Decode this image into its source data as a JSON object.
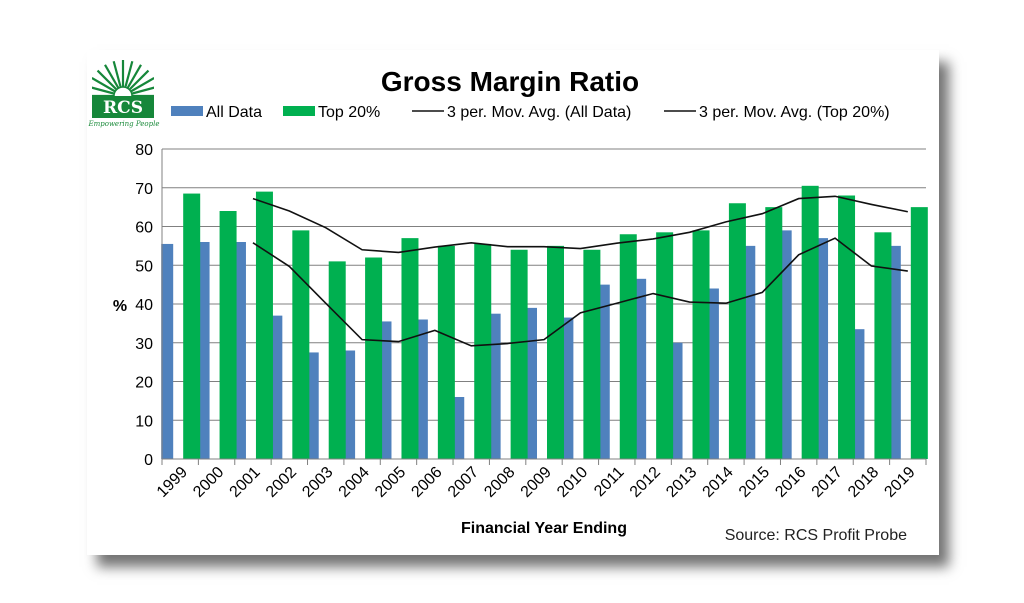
{
  "logo": {
    "text": "RCS",
    "tagline": "Empowering People"
  },
  "chart_data": {
    "type": "bar",
    "title": "Gross Margin Ratio",
    "xlabel": "Financial Year Ending",
    "ylabel": "%",
    "ylim": [
      0,
      80
    ],
    "yticks": [
      0,
      10,
      20,
      30,
      40,
      50,
      60,
      70,
      80
    ],
    "grid": true,
    "legend_position": "top",
    "categories": [
      "1999",
      "2000",
      "2001",
      "2002",
      "2003",
      "2004",
      "2005",
      "2006",
      "2007",
      "2008",
      "2009",
      "2010",
      "2011",
      "2012",
      "2013",
      "2014",
      "2015",
      "2016",
      "2017",
      "2018",
      "2019"
    ],
    "series": [
      {
        "name": "All Data",
        "kind": "bar",
        "color": "#4f81bd",
        "values": [
          55.5,
          56,
          56,
          37,
          27.5,
          28,
          35.5,
          36,
          16,
          37.5,
          39,
          36.5,
          45,
          46.5,
          30,
          44,
          55,
          59,
          57,
          33.5,
          55
        ]
      },
      {
        "name": "Top 20%",
        "kind": "bar",
        "color": "#00b050",
        "values": [
          68.5,
          64,
          69,
          59,
          51,
          52,
          57,
          55,
          55.5,
          54,
          55,
          54,
          58,
          58.5,
          59,
          66,
          65,
          70.5,
          68,
          58.5,
          65
        ]
      },
      {
        "name": "3 per. Mov. Avg. (All Data)",
        "kind": "line",
        "color": "#111111",
        "values": [
          null,
          null,
          55.8,
          49.7,
          40.2,
          30.8,
          30.3,
          33.2,
          29.2,
          29.8,
          30.8,
          37.7,
          40.2,
          42.7,
          40.5,
          40.2,
          43,
          52.7,
          57,
          49.8,
          48.5
        ]
      },
      {
        "name": "3 per. Mov. Avg. (Top 20%)",
        "kind": "line",
        "color": "#111111",
        "values": [
          null,
          null,
          67.2,
          64,
          59.7,
          54,
          53.3,
          54.7,
          55.8,
          54.8,
          54.8,
          54.3,
          55.7,
          56.8,
          58.5,
          61.2,
          63.3,
          67.2,
          67.8,
          65.7,
          63.8
        ]
      }
    ],
    "source": "Source: RCS Profit Probe"
  }
}
